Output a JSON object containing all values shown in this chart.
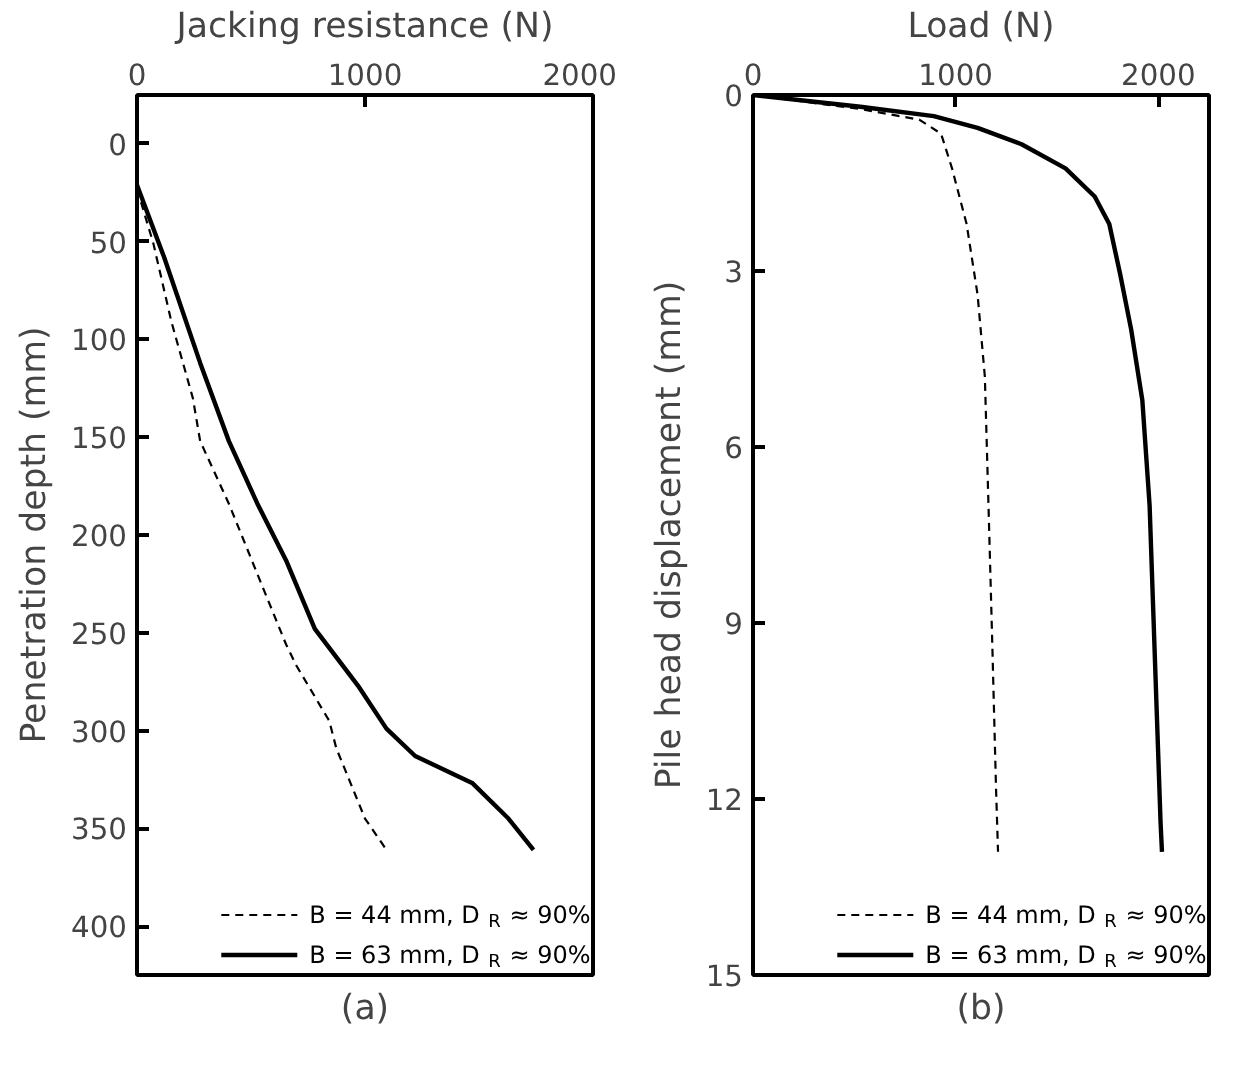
{
  "chart_data": [
    {
      "type": "line",
      "xlabel": "Jacking resistance (N)",
      "ylabel": "Penetration depth (mm)",
      "xlim": [
        0,
        2000
      ],
      "xticks": [
        0,
        1000,
        2000
      ],
      "ylim": [
        425,
        -25
      ],
      "yticks": [
        0,
        50,
        100,
        150,
        200,
        250,
        300,
        350,
        400
      ],
      "legend": "bottom right",
      "grid": false,
      "annotations": [
        "(a)"
      ],
      "series": [
        {
          "name": "B = 44 mm, D$_{R}$ ≈ 90%",
          "color": "#000000",
          "line_style": "dashed",
          "x": [
            0,
            72,
            151,
            245,
            277,
            403,
            528,
            654,
            700,
            843,
            874,
            1000,
            1094
          ],
          "values": [
            23,
            51,
            91,
            130,
            152,
            184,
            220,
            256,
            267,
            295,
            309,
            345,
            361
          ]
        },
        {
          "name": "B = 63 mm, D$_{R}$ ≈ 90%",
          "color": "#000000",
          "line_style": "solid",
          "x": [
            0,
            119,
            277,
            403,
            528,
            654,
            780,
            969,
            1094,
            1220,
            1472,
            1629,
            1739
          ],
          "values": [
            21,
            58,
            112,
            152,
            184,
            213,
            248,
            277,
            299,
            313,
            327,
            345,
            361
          ]
        }
      ]
    },
    {
      "type": "line",
      "xlabel": "Load (N)",
      "ylabel": "Pile head displacement (mm)",
      "xlim": [
        0,
        2250
      ],
      "xticks": [
        0,
        1000,
        2000
      ],
      "ylim": [
        15,
        0
      ],
      "yticks": [
        0,
        3,
        6,
        9,
        12,
        15
      ],
      "legend": "bottom right",
      "grid": false,
      "annotations": [
        "(b)"
      ],
      "series": [
        {
          "name": "B = 44 mm, D$_{R}$ ≈ 90%",
          "color": "#000000",
          "line_style": "dashed",
          "x": [
            0,
            530,
            820,
            928,
            982,
            1054,
            1108,
            1144,
            1162,
            1181,
            1199,
            1209
          ],
          "values": [
            0,
            0.24,
            0.42,
            0.66,
            1.25,
            2.2,
            3.4,
            4.8,
            7.0,
            9.4,
            11.8,
            12.9
          ]
        },
        {
          "name": "B = 63 mm, D$_{R}$ ≈ 90%",
          "color": "#000000",
          "line_style": "solid",
          "x": [
            0,
            530,
            892,
            1108,
            1325,
            1542,
            1686,
            1758,
            1812,
            1866,
            1921,
            1957,
            1975,
            1993,
            2011,
            2018
          ],
          "values": [
            0,
            0.2,
            0.36,
            0.56,
            0.84,
            1.25,
            1.73,
            2.2,
            3.06,
            4.0,
            5.2,
            7.0,
            8.8,
            10.6,
            12.4,
            12.9
          ]
        }
      ]
    }
  ]
}
